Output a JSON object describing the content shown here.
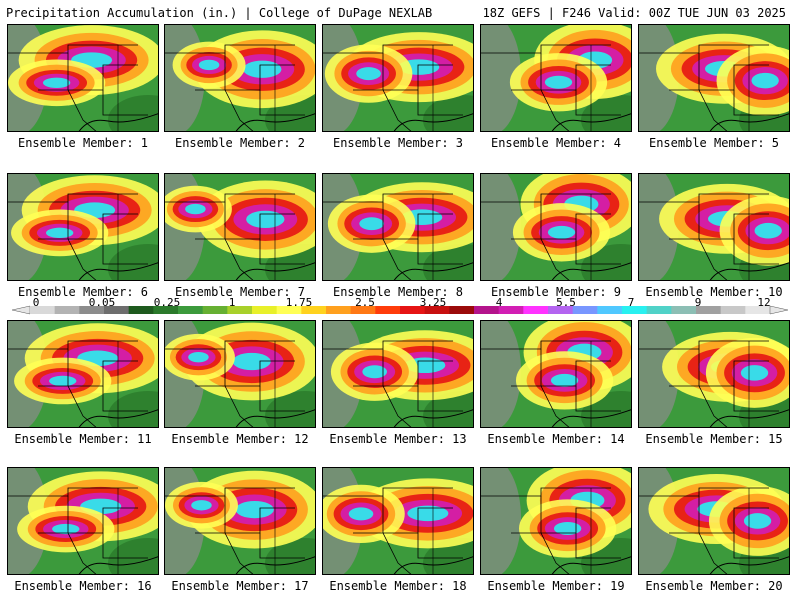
{
  "header": {
    "title_left": "Precipitation Accumulation (in.) | College of DuPage NEXLAB",
    "title_right": "18Z GEFS | F246 Valid: 00Z TUE JUN 03 2025"
  },
  "panels": [
    "Ensemble Member: 1",
    "Ensemble Member: 2",
    "Ensemble Member: 3",
    "Ensemble Member: 4",
    "Ensemble Member: 5",
    "Ensemble Member: 6",
    "Ensemble Member: 7",
    "Ensemble Member: 8",
    "Ensemble Member: 9",
    "Ensemble Member: 10",
    "Ensemble Member: 11",
    "Ensemble Member: 12",
    "Ensemble Member: 13",
    "Ensemble Member: 14",
    "Ensemble Member: 15",
    "Ensemble Member: 16",
    "Ensemble Member: 17",
    "Ensemble Member: 18",
    "Ensemble Member: 19",
    "Ensemble Member: 20"
  ],
  "colorbar": {
    "ticks": [
      "0",
      "0.05",
      "0.25",
      "1",
      "1.75",
      "2.5",
      "3.25",
      "4",
      "5.5",
      "7",
      "9",
      "12"
    ],
    "colors": [
      "#d9d9d9",
      "#b3b3b3",
      "#8c8c8c",
      "#6e6e6e",
      "#1e5a1e",
      "#2b7a2b",
      "#3c9a3c",
      "#66b032",
      "#a8d02a",
      "#e8f02a",
      "#ffff55",
      "#ffd21e",
      "#ffa01e",
      "#ff7814",
      "#ff3c0a",
      "#e61414",
      "#c80f0f",
      "#9b0a0a",
      "#b4148c",
      "#d21eb4",
      "#ff32ff",
      "#b464f0",
      "#7896ff",
      "#50c8ff",
      "#28f0f0",
      "#50d2c8",
      "#8cbeb4",
      "#a0a0a0",
      "#c8c8c8",
      "#e6e6e6"
    ]
  }
}
